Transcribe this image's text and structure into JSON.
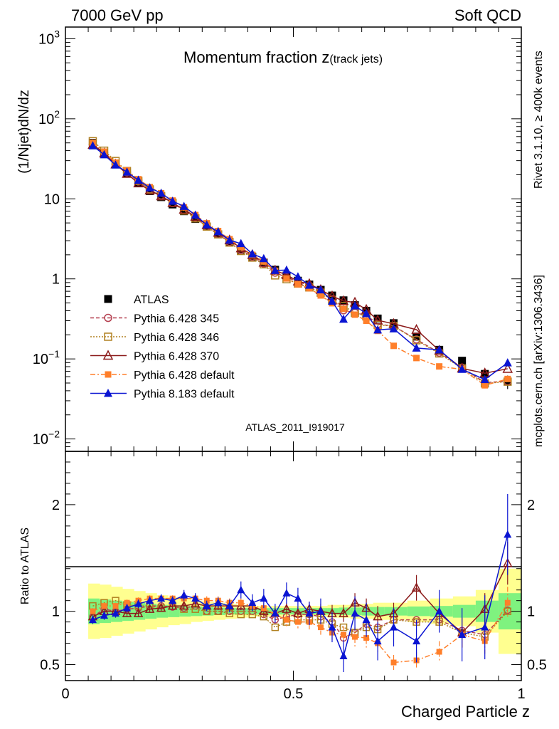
{
  "header": {
    "energy_label": "7000 GeV pp",
    "process_label": "Soft QCD"
  },
  "side_labels": {
    "rivet": "Rivet 3.1.10, ≥ 400k events",
    "mcplots": "mcplots.cern.ch [arXiv:1306.3436]"
  },
  "chart_data": [
    {
      "type": "scatter",
      "panel": "main",
      "title_main": "Momentum fraction z",
      "title_sub": "(track jets)",
      "analysis_label": "ATLAS_2011_I919017",
      "ylabel": "(1/Njet)dN/dz",
      "yscale": "log",
      "ylim": [
        0.007,
        1400
      ],
      "xlim": [
        0,
        1
      ],
      "y_ticks": [
        {
          "v": 0.01,
          "base": "10",
          "exp": "−2"
        },
        {
          "v": 0.1,
          "base": "10",
          "exp": "−1"
        },
        {
          "v": 1,
          "base": "1",
          "exp": ""
        },
        {
          "v": 10,
          "base": "10",
          "exp": ""
        },
        {
          "v": 100,
          "base": "10",
          "exp": "2"
        },
        {
          "v": 1000,
          "base": "10",
          "exp": "3"
        }
      ],
      "x": [
        0.06,
        0.085,
        0.11,
        0.135,
        0.16,
        0.185,
        0.21,
        0.235,
        0.26,
        0.285,
        0.31,
        0.335,
        0.36,
        0.385,
        0.41,
        0.435,
        0.46,
        0.485,
        0.51,
        0.535,
        0.56,
        0.585,
        0.61,
        0.635,
        0.66,
        0.685,
        0.72,
        0.77,
        0.82,
        0.87,
        0.92,
        0.97
      ],
      "series": [
        {
          "name": "ATLAS",
          "color": "#000000",
          "marker": "square",
          "line": "none",
          "values": [
            50,
            37,
            27,
            21,
            16,
            12.5,
            10.5,
            8.5,
            7,
            5.6,
            4.5,
            3.6,
            2.9,
            2.3,
            1.9,
            1.6,
            1.3,
            1.1,
            0.95,
            0.85,
            0.73,
            0.62,
            0.54,
            0.47,
            0.4,
            0.32,
            0.28,
            0.19,
            0.13,
            0.095,
            0.065,
            0.052
          ],
          "errors": [
            1.5,
            1,
            0.8,
            0.6,
            0.5,
            0.4,
            0.3,
            0.25,
            0.2,
            0.2,
            0.15,
            0.12,
            0.1,
            0.08,
            0.07,
            0.06,
            0.05,
            0.05,
            0.04,
            0.04,
            0.04,
            0.04,
            0.04,
            0.03,
            0.03,
            0.03,
            0.02,
            0.02,
            0.015,
            0.01,
            0.01,
            0.01
          ]
        },
        {
          "name": "Pythia 6.428 345",
          "color": "#b54050",
          "marker": "circle-open",
          "line": "dashed",
          "ratio": [
            0.95,
            1.02,
            1.0,
            1.02,
            1.03,
            1.05,
            1.05,
            1.04,
            1.03,
            1.05,
            1.0,
            1.0,
            1.0,
            1.0,
            1.0,
            0.97,
            0.92,
            0.95,
            0.97,
            0.97,
            0.95,
            0.9,
            0.75,
            0.8,
            0.88,
            0.85,
            0.92,
            0.92,
            0.92,
            0.82,
            0.78,
            1.01
          ]
        },
        {
          "name": "Pythia 6.428 346",
          "color": "#b08020",
          "marker": "square-open",
          "line": "dotted",
          "ratio": [
            1.05,
            1.08,
            1.1,
            1.06,
            1.05,
            1.05,
            1.03,
            1.05,
            1.02,
            1.02,
            1.0,
            1.0,
            0.98,
            0.97,
            0.97,
            0.95,
            0.85,
            0.9,
            0.92,
            0.92,
            0.92,
            0.88,
            0.85,
            0.8,
            0.85,
            0.83,
            0.92,
            0.9,
            0.9,
            0.8,
            0.76,
            1.0
          ]
        },
        {
          "name": "Pythia 6.428 370",
          "color": "#8b1a1a",
          "marker": "triangle-open",
          "line": "solid",
          "ratio": [
            0.95,
            1.0,
            1.0,
            0.98,
            0.98,
            1.02,
            1.03,
            1.05,
            1.05,
            1.07,
            1.05,
            1.05,
            1.05,
            1.05,
            1.05,
            1.0,
            0.98,
            1.02,
            0.98,
            1.02,
            1.0,
            0.98,
            0.98,
            1.08,
            1.03,
            0.95,
            0.98,
            1.22,
            0.98,
            0.8,
            1.02,
            1.45
          ],
          "errors_r": [
            0.03,
            0.03,
            0.03,
            0.03,
            0.03,
            0.03,
            0.03,
            0.03,
            0.03,
            0.03,
            0.04,
            0.04,
            0.04,
            0.04,
            0.05,
            0.05,
            0.06,
            0.06,
            0.06,
            0.07,
            0.07,
            0.08,
            0.08,
            0.09,
            0.09,
            0.1,
            0.1,
            0.12,
            0.12,
            0.14,
            0.15,
            0.2
          ]
        },
        {
          "name": "Pythia 6.428 default",
          "color": "#ff7f2a",
          "marker": "square-filled",
          "line": "dashdot",
          "ratio": [
            1.0,
            1.05,
            1.05,
            1.08,
            1.1,
            1.12,
            1.12,
            1.12,
            1.12,
            1.12,
            1.1,
            1.1,
            1.08,
            1.08,
            1.05,
            1.03,
            0.97,
            0.92,
            0.9,
            0.9,
            0.85,
            0.8,
            0.78,
            0.76,
            0.75,
            0.7,
            0.52,
            0.54,
            0.62,
            0.78,
            0.72,
            1.08
          ],
          "errors_r": [
            0.03,
            0.03,
            0.03,
            0.03,
            0.03,
            0.03,
            0.03,
            0.03,
            0.03,
            0.03,
            0.04,
            0.04,
            0.04,
            0.04,
            0.05,
            0.05,
            0.05,
            0.06,
            0.06,
            0.07,
            0.07,
            0.08,
            0.08,
            0.09,
            0.09,
            0.1,
            0.07,
            0.08,
            0.1,
            0.12,
            0.12,
            0.15
          ]
        },
        {
          "name": "Pythia 8.183 default",
          "color": "#0a14d2",
          "marker": "triangle-filled",
          "line": "solid",
          "ratio": [
            0.92,
            0.96,
            0.98,
            1.03,
            1.07,
            1.1,
            1.12,
            1.1,
            1.15,
            1.12,
            1.05,
            1.08,
            1.05,
            1.2,
            1.08,
            1.12,
            0.98,
            1.17,
            1.12,
            0.98,
            1.0,
            0.85,
            0.58,
            0.98,
            0.92,
            0.72,
            0.85,
            0.72,
            1.0,
            0.78,
            0.85,
            1.72
          ],
          "errors_r": [
            0.04,
            0.04,
            0.04,
            0.04,
            0.04,
            0.04,
            0.04,
            0.04,
            0.05,
            0.05,
            0.05,
            0.05,
            0.06,
            0.08,
            0.08,
            0.09,
            0.09,
            0.1,
            0.1,
            0.11,
            0.12,
            0.14,
            0.15,
            0.16,
            0.16,
            0.18,
            0.18,
            0.2,
            0.2,
            0.25,
            0.3,
            0.38
          ]
        }
      ]
    },
    {
      "type": "scatter",
      "panel": "ratio",
      "ylabel": "Ratio to ATLAS",
      "xlabel": "Charged Particle z",
      "ylim": [
        0.35,
        2.5
      ],
      "xlim": [
        0,
        1
      ],
      "y_tick_labels": [
        {
          "v": 0.5,
          "label": "0.5"
        },
        {
          "v": 1,
          "label": "1"
        },
        {
          "v": 2,
          "label": "2"
        }
      ],
      "x_tick_labels": [
        {
          "v": 0,
          "label": "0"
        },
        {
          "v": 0.5,
          "label": "0.5"
        },
        {
          "v": 1,
          "label": "1"
        }
      ],
      "bands": {
        "edges": [
          0.05,
          0.075,
          0.1,
          0.125,
          0.15,
          0.175,
          0.2,
          0.225,
          0.25,
          0.275,
          0.3,
          0.325,
          0.35,
          0.375,
          0.4,
          0.425,
          0.45,
          0.475,
          0.5,
          0.525,
          0.55,
          0.575,
          0.6,
          0.625,
          0.65,
          0.675,
          0.7,
          0.75,
          0.8,
          0.85,
          0.9,
          0.95,
          1.0
        ],
        "inner_half_width": [
          0.12,
          0.11,
          0.1,
          0.09,
          0.08,
          0.07,
          0.06,
          0.055,
          0.05,
          0.045,
          0.04,
          0.035,
          0.03,
          0.03,
          0.03,
          0.03,
          0.03,
          0.03,
          0.03,
          0.03,
          0.03,
          0.03,
          0.035,
          0.035,
          0.04,
          0.04,
          0.04,
          0.045,
          0.05,
          0.06,
          0.1,
          0.17
        ],
        "outer_half_width": [
          0.26,
          0.25,
          0.23,
          0.21,
          0.19,
          0.17,
          0.15,
          0.13,
          0.12,
          0.1,
          0.09,
          0.08,
          0.07,
          0.06,
          0.05,
          0.05,
          0.05,
          0.05,
          0.05,
          0.05,
          0.05,
          0.06,
          0.06,
          0.07,
          0.07,
          0.08,
          0.08,
          0.1,
          0.12,
          0.14,
          0.2,
          0.4
        ],
        "inner_color": "#7ff27f",
        "outer_color": "#ffff90"
      }
    }
  ]
}
